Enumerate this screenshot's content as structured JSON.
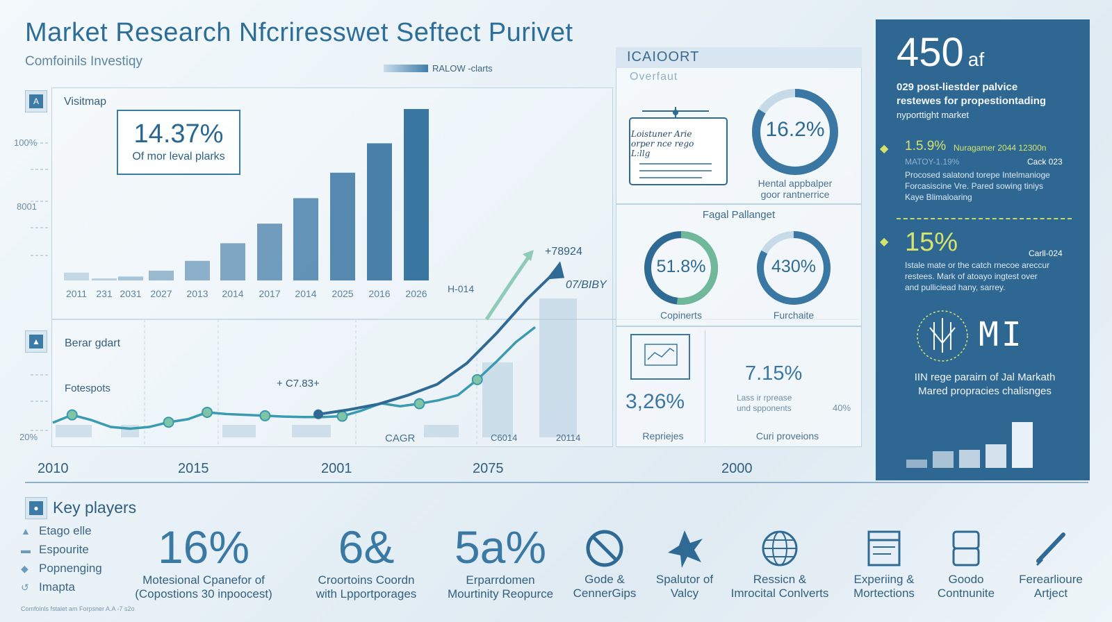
{
  "header": {
    "title": "Market Research Nfcriresswet Seftect Purivet",
    "subtitle": "Comfoinils Investiqy",
    "legend_label": "RALOW -clarts"
  },
  "main_panel": {
    "section1_label": "Visitmap",
    "section1_icon": "A",
    "section2_label": "Berar gdart",
    "section3_label": "Fotespots",
    "kpi_value": "14.37%",
    "kpi_caption": "Of mor leval plarks",
    "yticks": [
      "100%",
      "8001",
      "20%"
    ],
    "annot_top": "+78924",
    "annot_mid": "07/BIBY",
    "annot_h": "H-014",
    "annot_line": "+ C7.83+",
    "annot_cagr": "CAGR",
    "annot_c6014": "C6014",
    "annot_20114": "20114",
    "bottom_years": [
      "2010",
      "2015",
      "2001",
      "2075",
      "2000"
    ]
  },
  "chart_data": [
    {
      "type": "bar",
      "categories": [
        "2011",
        "231",
        "2031",
        "2027",
        "2013",
        "2014",
        "2017",
        "2014",
        "2025",
        "2016",
        "2026"
      ],
      "values": [
        8,
        2,
        4,
        10,
        20,
        38,
        58,
        84,
        110,
        140,
        175
      ],
      "ylim": [
        0,
        180
      ],
      "title": "",
      "xlabel": "",
      "ylabel": ""
    },
    {
      "type": "line",
      "title": "",
      "series": [
        {
          "values": [
            18,
            36,
            24,
            8,
            4,
            8,
            19,
            26,
            42,
            38,
            36,
            34,
            32,
            31,
            31,
            33,
            46,
            63,
            56,
            62,
            70,
            82,
            118,
            160,
            205,
            240
          ]
        },
        {
          "values": [
            4,
            12,
            22,
            38,
            58,
            96,
            150,
            210,
            262
          ]
        }
      ]
    },
    {
      "type": "pie",
      "rings": [
        {
          "label": "16.2%",
          "value": 16.2
        },
        {
          "label": "51.8%",
          "value": 51.8
        },
        {
          "label": "430%",
          "value": 43.0
        }
      ]
    }
  ],
  "right_panel": {
    "head": "ICAIOORT",
    "overfaut": "Overfaut",
    "doc_text": [
      "Loistuner Arie",
      "orper nce rego",
      "L:llg"
    ],
    "ring1_value": "16.2%",
    "ring1_caption": [
      "Hental appbalper",
      "goor rantnerrice"
    ],
    "fagal": "Fagal Pallanget",
    "ring2_value": "51.8%",
    "ring2_caption": "Copinerts",
    "ring3_value": "430%",
    "ring3_caption": "Furchaite",
    "bottom_left_value": "3,26%",
    "bottom_left_caption": "Repriejes",
    "bottom_mid_value": "7.15%",
    "bottom_mid_text": [
      "Lass ir rprease",
      "und spponents"
    ],
    "bottom_mid_pct": "40%",
    "bottom_mid_caption": "Curi proveions"
  },
  "blue_panel": {
    "big": "450",
    "big_suffix": "af",
    "intro": [
      "029 post-liestder palvice",
      "restewes for propestiontading",
      "nyporttight market"
    ],
    "item1_pct": "1.5.9%",
    "item1_tag": "Nuragamer 2044 12300n",
    "item1_sub": "MATOY-1.19%",
    "item1_card": "Cack 023",
    "item1_text": [
      "Procosed salatond torepe Intelmanioge",
      "Forcasiscine Vre. Pared sowing tiniys",
      "Kaye Blimaloaring"
    ],
    "item2_pct": "15%",
    "item2_card": "Carll-024",
    "item2_text": [
      "Istale mate or the catch rnecoe areccur",
      "restees. Mark of atoayo ingtest over",
      "and pulliciead hany, sarrey."
    ],
    "logo_text": "MI",
    "footer_text": [
      "IIN rege parairn of Jal Markath",
      "Mared propracies chalisnges"
    ],
    "mini_bars": [
      12,
      24,
      26,
      34,
      66
    ]
  },
  "key_players": {
    "title": "Key players",
    "items": [
      "Etago elle",
      "Espourite",
      "Popnenging",
      "Imapta"
    ],
    "stats": [
      {
        "value": "16%",
        "caption": [
          "Motesional Cpanefor of",
          "(Copostions 30 inpoocest)"
        ]
      },
      {
        "value": "6&",
        "caption": [
          "Croortoins Coordn",
          "with Lpportporages"
        ]
      },
      {
        "value": "5a%",
        "caption": [
          "Erparrdomen",
          "Mourtinity Reopurce"
        ]
      }
    ],
    "icons": [
      {
        "name": "prohibit-icon",
        "caption": [
          "Gode &",
          "CennerGips"
        ]
      },
      {
        "name": "star-burst-icon",
        "caption": [
          "Spalutor of",
          "Valcy"
        ]
      },
      {
        "name": "globe-icon",
        "caption": [
          "Ressicn &",
          "Imrocital Conlverts"
        ]
      },
      {
        "name": "calendar-icon",
        "caption": [
          "Experiing &",
          "Mortections"
        ]
      },
      {
        "name": "document-icon",
        "caption": [
          "Goodo",
          "Contnunite"
        ]
      },
      {
        "name": "pen-icon",
        "caption": [
          "Ferearlioure",
          "Artject"
        ]
      }
    ],
    "footnote": "Comfoinls fstalet am Forpsner A.A -7 s2o"
  }
}
